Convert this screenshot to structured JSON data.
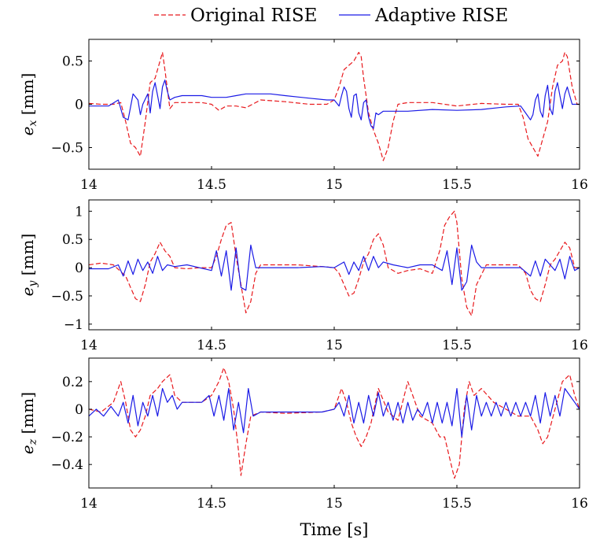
{
  "legend": {
    "original": "Original RISE",
    "adaptive": "Adaptive RISE"
  },
  "colors": {
    "original": "#e8191d",
    "adaptive": "#1a1ae6"
  },
  "xlabel": "Time [s]",
  "chart_data": [
    {
      "type": "line",
      "ylabel_var": "e",
      "ylabel_sub": "x",
      "ylabel_unit": " [mm]",
      "xlim": [
        14,
        16
      ],
      "ylim": [
        -0.75,
        0.75
      ],
      "xticks": [
        14,
        14.5,
        15,
        15.5,
        16
      ],
      "xtick_labels": [
        "14",
        "14.5",
        "15",
        "15.5",
        "16"
      ],
      "yticks": [
        -0.5,
        0,
        0.5
      ],
      "ytick_labels": [
        "−0.5",
        "0",
        "0.5"
      ],
      "series": [
        {
          "name": "Original RISE",
          "x": [
            14.0,
            14.05,
            14.1,
            14.13,
            14.15,
            14.17,
            14.19,
            14.21,
            14.23,
            14.25,
            14.27,
            14.29,
            14.3,
            14.31,
            14.33,
            14.35,
            14.38,
            14.42,
            14.46,
            14.5,
            14.53,
            14.56,
            14.6,
            14.64,
            14.7,
            14.8,
            14.9,
            14.97,
            15.0,
            15.02,
            15.04,
            15.06,
            15.08,
            15.1,
            15.11,
            15.12,
            15.14,
            15.16,
            15.18,
            15.2,
            15.22,
            15.24,
            15.26,
            15.3,
            15.4,
            15.5,
            15.6,
            15.7,
            15.75,
            15.77,
            15.79,
            15.81,
            15.83,
            15.85,
            15.87,
            15.89,
            15.91,
            15.93,
            15.94,
            15.95,
            15.97,
            15.99,
            16.0
          ],
          "values": [
            0.01,
            0.0,
            0.0,
            0.02,
            -0.2,
            -0.45,
            -0.5,
            -0.6,
            -0.2,
            0.25,
            0.3,
            0.5,
            0.6,
            0.4,
            -0.05,
            0.02,
            0.02,
            0.02,
            0.02,
            0.0,
            -0.07,
            -0.02,
            -0.02,
            -0.04,
            0.05,
            0.03,
            0.0,
            0.0,
            0.05,
            0.2,
            0.4,
            0.45,
            0.5,
            0.6,
            0.55,
            0.3,
            -0.1,
            -0.3,
            -0.45,
            -0.65,
            -0.5,
            -0.2,
            0.0,
            0.02,
            0.02,
            -0.02,
            0.01,
            0.0,
            0.0,
            -0.15,
            -0.4,
            -0.5,
            -0.6,
            -0.4,
            -0.2,
            0.2,
            0.45,
            0.5,
            0.6,
            0.55,
            0.2,
            0.0,
            0.0
          ]
        },
        {
          "name": "Adaptive RISE",
          "x": [
            14.0,
            14.08,
            14.12,
            14.14,
            14.16,
            14.18,
            14.2,
            14.21,
            14.22,
            14.24,
            14.25,
            14.26,
            14.27,
            14.28,
            14.29,
            14.3,
            14.31,
            14.32,
            14.33,
            14.35,
            14.38,
            14.42,
            14.46,
            14.5,
            14.53,
            14.56,
            14.6,
            14.64,
            14.68,
            14.74,
            14.8,
            14.9,
            14.97,
            15.0,
            15.02,
            15.03,
            15.04,
            15.05,
            15.06,
            15.07,
            15.08,
            15.09,
            15.1,
            15.11,
            15.12,
            15.13,
            15.14,
            15.15,
            15.16,
            15.17,
            15.18,
            15.2,
            15.25,
            15.3,
            15.4,
            15.5,
            15.6,
            15.7,
            15.76,
            15.78,
            15.8,
            15.81,
            15.82,
            15.83,
            15.84,
            15.85,
            15.86,
            15.87,
            15.88,
            15.89,
            15.9,
            15.91,
            15.92,
            15.93,
            15.94,
            15.95,
            15.96,
            15.97,
            15.98,
            16.0
          ],
          "values": [
            -0.02,
            -0.02,
            0.05,
            -0.15,
            -0.18,
            0.12,
            0.05,
            -0.12,
            0.0,
            0.12,
            -0.1,
            0.15,
            0.25,
            0.1,
            -0.05,
            0.2,
            0.28,
            0.15,
            0.05,
            0.08,
            0.1,
            0.1,
            0.1,
            0.08,
            0.08,
            0.08,
            0.1,
            0.12,
            0.12,
            0.12,
            0.1,
            0.07,
            0.05,
            0.05,
            -0.02,
            0.1,
            0.2,
            0.15,
            -0.05,
            -0.15,
            0.1,
            0.12,
            -0.1,
            -0.18,
            0.02,
            0.05,
            -0.15,
            -0.25,
            -0.28,
            -0.1,
            -0.12,
            -0.08,
            -0.08,
            -0.08,
            -0.06,
            -0.07,
            -0.06,
            -0.03,
            -0.02,
            -0.1,
            -0.18,
            -0.12,
            0.05,
            0.12,
            -0.08,
            -0.15,
            0.1,
            0.22,
            -0.05,
            -0.12,
            0.15,
            0.25,
            0.1,
            -0.05,
            0.12,
            0.2,
            0.1,
            0.0,
            0.0,
            0.0
          ]
        }
      ]
    },
    {
      "type": "line",
      "ylabel_var": "e",
      "ylabel_sub": "y",
      "ylabel_unit": " [mm]",
      "xlim": [
        14,
        16
      ],
      "ylim": [
        -1.1,
        1.2
      ],
      "xticks": [
        14,
        14.5,
        15,
        15.5,
        16
      ],
      "xtick_labels": [
        "14",
        "14.5",
        "15",
        "15.5",
        "16"
      ],
      "yticks": [
        -1,
        -0.5,
        0,
        0.5,
        1
      ],
      "ytick_labels": [
        "−1",
        "−0.5",
        "0",
        "0.5",
        "1"
      ],
      "series": [
        {
          "name": "Original RISE",
          "x": [
            14.0,
            14.05,
            14.1,
            14.15,
            14.17,
            14.19,
            14.21,
            14.23,
            14.25,
            14.27,
            14.29,
            14.31,
            14.33,
            14.35,
            14.4,
            14.45,
            14.5,
            14.52,
            14.54,
            14.56,
            14.58,
            14.6,
            14.62,
            14.64,
            14.66,
            14.68,
            14.7,
            14.75,
            14.85,
            14.95,
            15.0,
            15.02,
            15.04,
            15.06,
            15.08,
            15.1,
            15.12,
            15.14,
            15.16,
            15.18,
            15.2,
            15.22,
            15.26,
            15.3,
            15.35,
            15.4,
            15.43,
            15.45,
            15.47,
            15.49,
            15.5,
            15.52,
            15.54,
            15.56,
            15.58,
            15.62,
            15.7,
            15.75,
            15.78,
            15.8,
            15.82,
            15.84,
            15.86,
            15.88,
            15.9,
            15.92,
            15.94,
            15.96,
            15.98,
            16.0
          ],
          "values": [
            0.05,
            0.08,
            0.05,
            -0.15,
            -0.35,
            -0.55,
            -0.6,
            -0.3,
            0.1,
            0.25,
            0.45,
            0.3,
            0.2,
            0.0,
            -0.02,
            0.0,
            0.0,
            0.2,
            0.5,
            0.75,
            0.8,
            0.2,
            -0.3,
            -0.8,
            -0.6,
            -0.1,
            0.05,
            0.05,
            0.05,
            0.02,
            0.0,
            -0.1,
            -0.3,
            -0.5,
            -0.45,
            -0.2,
            0.1,
            0.25,
            0.5,
            0.6,
            0.4,
            0.0,
            -0.1,
            -0.05,
            -0.02,
            -0.1,
            0.3,
            0.75,
            0.9,
            1.0,
            0.8,
            -0.2,
            -0.7,
            -0.85,
            -0.3,
            0.05,
            0.05,
            0.05,
            -0.1,
            -0.4,
            -0.55,
            -0.6,
            -0.3,
            0.05,
            0.15,
            0.3,
            0.45,
            0.35,
            0.0,
            0.0
          ]
        },
        {
          "name": "Adaptive RISE",
          "x": [
            14.0,
            14.08,
            14.12,
            14.14,
            14.16,
            14.18,
            14.2,
            14.22,
            14.24,
            14.26,
            14.28,
            14.3,
            14.32,
            14.35,
            14.4,
            14.45,
            14.5,
            14.52,
            14.54,
            14.56,
            14.58,
            14.6,
            14.62,
            14.64,
            14.66,
            14.68,
            14.7,
            14.75,
            14.85,
            14.95,
            15.0,
            15.04,
            15.06,
            15.08,
            15.1,
            15.12,
            15.14,
            15.16,
            15.18,
            15.2,
            15.24,
            15.3,
            15.35,
            15.4,
            15.44,
            15.46,
            15.48,
            15.5,
            15.52,
            15.54,
            15.56,
            15.58,
            15.6,
            15.65,
            15.7,
            15.76,
            15.8,
            15.82,
            15.84,
            15.86,
            15.88,
            15.9,
            15.92,
            15.94,
            15.96,
            15.98,
            16.0
          ],
          "values": [
            -0.02,
            -0.02,
            0.05,
            -0.15,
            0.12,
            -0.12,
            0.15,
            -0.05,
            0.1,
            -0.1,
            0.2,
            -0.05,
            0.05,
            0.02,
            0.05,
            0.0,
            -0.05,
            0.3,
            -0.15,
            0.3,
            -0.4,
            0.35,
            -0.35,
            -0.4,
            0.4,
            0.0,
            0.0,
            0.0,
            0.0,
            0.02,
            0.0,
            0.1,
            -0.12,
            0.1,
            -0.05,
            0.2,
            -0.05,
            0.2,
            0.0,
            0.1,
            0.05,
            0.0,
            0.05,
            0.05,
            -0.05,
            0.3,
            -0.3,
            0.35,
            -0.4,
            -0.25,
            0.4,
            0.1,
            0.0,
            0.0,
            0.0,
            0.0,
            -0.15,
            0.12,
            -0.15,
            0.15,
            0.05,
            -0.05,
            0.15,
            -0.2,
            0.2,
            -0.05,
            0.0
          ]
        }
      ]
    },
    {
      "type": "line",
      "ylabel_var": "e",
      "ylabel_sub": "z",
      "ylabel_unit": " [mm]",
      "xlim": [
        14,
        16
      ],
      "ylim": [
        -0.57,
        0.37
      ],
      "xticks": [
        14,
        14.5,
        15,
        15.5,
        16
      ],
      "xtick_labels": [
        "14",
        "14.5",
        "15",
        "15.5",
        "16"
      ],
      "yticks": [
        -0.4,
        -0.2,
        0,
        0.2
      ],
      "ytick_labels": [
        "−0.4",
        "−0.2",
        "0",
        "0.2"
      ],
      "series": [
        {
          "name": "Original RISE",
          "x": [
            14.0,
            14.05,
            14.1,
            14.13,
            14.15,
            14.17,
            14.19,
            14.21,
            14.23,
            14.25,
            14.28,
            14.3,
            14.33,
            14.35,
            14.38,
            14.42,
            14.46,
            14.5,
            14.53,
            14.55,
            14.57,
            14.59,
            14.61,
            14.62,
            14.64,
            14.66,
            14.7,
            14.8,
            14.95,
            15.0,
            15.03,
            15.05,
            15.07,
            15.09,
            15.11,
            15.13,
            15.15,
            15.18,
            15.22,
            15.26,
            15.3,
            15.35,
            15.4,
            15.43,
            15.45,
            15.47,
            15.49,
            15.51,
            15.53,
            15.55,
            15.57,
            15.6,
            15.65,
            15.7,
            15.75,
            15.8,
            15.83,
            15.85,
            15.87,
            15.9,
            15.93,
            15.96,
            15.98,
            16.0
          ],
          "values": [
            0.0,
            -0.02,
            0.05,
            0.2,
            0.05,
            -0.15,
            -0.2,
            -0.15,
            -0.05,
            0.1,
            0.15,
            0.2,
            0.25,
            0.1,
            0.05,
            0.05,
            0.05,
            0.1,
            0.2,
            0.3,
            0.2,
            0.0,
            -0.3,
            -0.48,
            -0.25,
            -0.05,
            -0.02,
            -0.03,
            -0.02,
            0.0,
            0.15,
            0.05,
            -0.1,
            -0.2,
            -0.27,
            -0.2,
            -0.1,
            0.15,
            -0.02,
            -0.08,
            0.2,
            -0.05,
            -0.1,
            -0.2,
            -0.2,
            -0.35,
            -0.5,
            -0.4,
            0.0,
            0.2,
            0.1,
            0.15,
            0.05,
            0.0,
            -0.05,
            -0.05,
            -0.15,
            -0.25,
            -0.2,
            0.0,
            0.2,
            0.25,
            0.1,
            0.0
          ]
        },
        {
          "name": "Adaptive RISE",
          "x": [
            14.0,
            14.03,
            14.06,
            14.09,
            14.12,
            14.14,
            14.16,
            14.18,
            14.2,
            14.22,
            14.24,
            14.26,
            14.28,
            14.3,
            14.32,
            14.34,
            14.36,
            14.38,
            14.4,
            14.43,
            14.46,
            14.49,
            14.51,
            14.53,
            14.55,
            14.57,
            14.59,
            14.61,
            14.63,
            14.65,
            14.67,
            14.7,
            14.8,
            14.95,
            15.0,
            15.02,
            15.04,
            15.06,
            15.08,
            15.1,
            15.12,
            15.14,
            15.16,
            15.18,
            15.2,
            15.22,
            15.24,
            15.26,
            15.28,
            15.3,
            15.32,
            15.34,
            15.36,
            15.38,
            15.4,
            15.42,
            15.44,
            15.46,
            15.48,
            15.5,
            15.52,
            15.54,
            15.56,
            15.58,
            15.6,
            15.62,
            15.64,
            15.66,
            15.68,
            15.7,
            15.72,
            15.74,
            15.76,
            15.78,
            15.8,
            15.82,
            15.84,
            15.86,
            15.88,
            15.9,
            15.92,
            15.94,
            15.96,
            15.98,
            16.0
          ],
          "values": [
            -0.05,
            0.0,
            -0.05,
            0.02,
            -0.05,
            0.05,
            -0.1,
            0.1,
            -0.12,
            0.05,
            -0.05,
            0.1,
            -0.05,
            0.15,
            0.05,
            0.1,
            0.0,
            0.05,
            0.05,
            0.05,
            0.05,
            0.1,
            -0.05,
            0.1,
            -0.08,
            0.15,
            -0.15,
            0.05,
            -0.17,
            0.15,
            -0.05,
            -0.02,
            -0.02,
            -0.02,
            0.0,
            0.05,
            -0.05,
            0.1,
            -0.1,
            0.05,
            -0.1,
            0.1,
            -0.05,
            0.12,
            -0.05,
            0.05,
            -0.08,
            0.05,
            -0.1,
            0.05,
            -0.08,
            0.0,
            -0.05,
            0.05,
            -0.1,
            0.05,
            -0.1,
            0.05,
            -0.12,
            0.15,
            -0.2,
            0.1,
            -0.15,
            0.1,
            -0.05,
            0.05,
            -0.05,
            0.05,
            -0.05,
            0.05,
            -0.05,
            0.05,
            -0.05,
            0.05,
            -0.05,
            0.1,
            -0.1,
            0.12,
            -0.05,
            0.1,
            -0.05,
            0.15,
            0.1,
            0.05,
            0.0
          ]
        }
      ]
    }
  ]
}
